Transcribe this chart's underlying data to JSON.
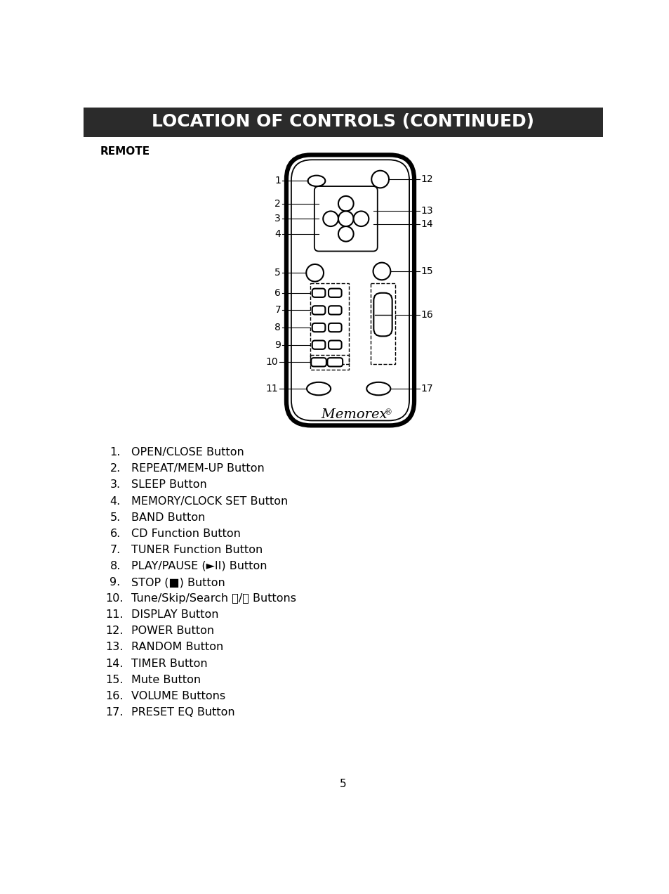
{
  "title": "LOCATION OF CONTROLS (CONTINUED)",
  "title_bg": "#2b2b2b",
  "title_color": "#ffffff",
  "section_label": "REMOTE",
  "items": [
    "OPEN/CLOSE Button",
    "REPEAT/MEM-UP Button",
    "SLEEP Button",
    "MEMORY/CLOCK SET Button",
    "BAND Button",
    "CD Function Button",
    "TUNER Function Button",
    "PLAY/PAUSE (►II) Button",
    "STOP (■) Button",
    "Tune/Skip/Search ⏭/⏮ Buttons",
    "DISPLAY Button",
    "POWER Button",
    "RANDOM Button",
    "TIMER Button",
    "Mute Button",
    "VOLUME Buttons",
    "PRESET EQ Button"
  ],
  "page_number": "5",
  "background_color": "#ffffff",
  "text_color": "#000000"
}
